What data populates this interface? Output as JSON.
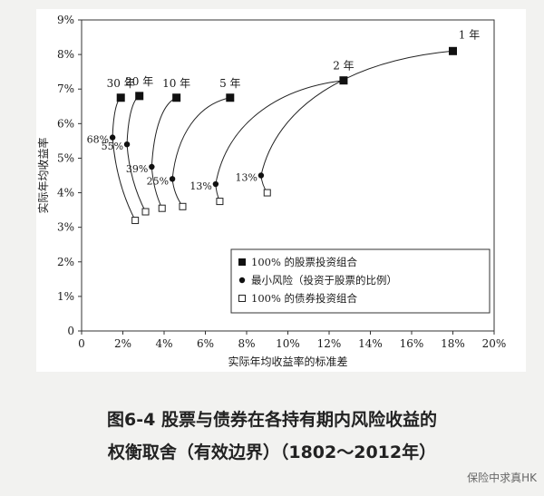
{
  "chart_data": {
    "type": "scatter",
    "xlabel": "实际年均收益率的标准差",
    "ylabel": "实际年均收益率",
    "xlim": [
      0,
      20
    ],
    "ylim": [
      0,
      9
    ],
    "x_ticks": [
      "0",
      "2%",
      "4%",
      "6%",
      "8%",
      "10%",
      "12%",
      "14%",
      "16%",
      "18%",
      "20%"
    ],
    "y_ticks": [
      "0",
      "1%",
      "2%",
      "3%",
      "4%",
      "5%",
      "6%",
      "7%",
      "8%",
      "9%"
    ],
    "grid": false,
    "legend_position": "bottom-right",
    "legend": [
      {
        "marker": "filled-square",
        "label": "100% 的股票投资组合"
      },
      {
        "marker": "filled-circle",
        "label": "最小风险（投资于股票的比例）"
      },
      {
        "marker": "open-square",
        "label": "100% 的债券投资组合"
      }
    ],
    "horizons": [
      {
        "label": "1 年",
        "stocks": [
          18.0,
          8.1
        ],
        "min_risk": [
          8.7,
          4.5
        ],
        "min_risk_label": "13%",
        "bonds": [
          9.0,
          4.0
        ]
      },
      {
        "label": "2 年",
        "stocks": [
          12.7,
          7.25
        ],
        "min_risk": [
          6.5,
          4.25
        ],
        "min_risk_label": "13%",
        "bonds": [
          6.7,
          3.75
        ]
      },
      {
        "label": "5 年",
        "stocks": [
          7.2,
          6.75
        ],
        "min_risk": [
          4.4,
          4.4
        ],
        "min_risk_label": "25%",
        "bonds": [
          4.9,
          3.6
        ]
      },
      {
        "label": "10 年",
        "stocks": [
          4.6,
          6.75
        ],
        "min_risk": [
          3.4,
          4.75
        ],
        "min_risk_label": "39%",
        "bonds": [
          3.9,
          3.55
        ]
      },
      {
        "label": "20 年",
        "stocks": [
          2.8,
          6.8
        ],
        "min_risk": [
          2.2,
          5.4
        ],
        "min_risk_label": "55%",
        "bonds": [
          3.1,
          3.45
        ]
      },
      {
        "label": "30 年",
        "stocks": [
          1.9,
          6.75
        ],
        "min_risk": [
          1.5,
          5.6
        ],
        "min_risk_label": "68%",
        "bonds": [
          2.6,
          3.2
        ]
      }
    ]
  },
  "caption": {
    "line1": "图6-4 股票与债券在各持有期内风险收益的",
    "line2": "权衡取舍（有效边界）（1802～2012年）"
  },
  "watermark": "保险中求真HK"
}
